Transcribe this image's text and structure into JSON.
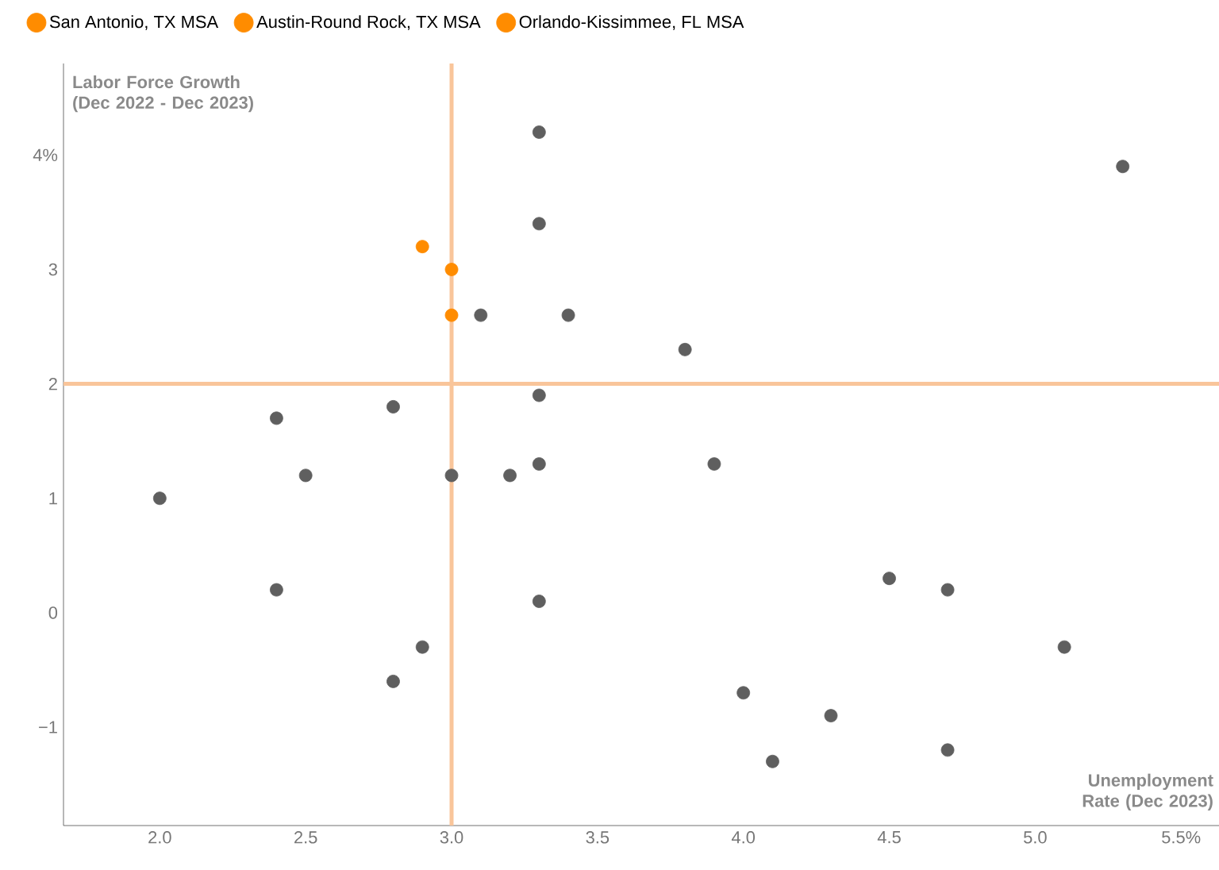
{
  "chart_data": {
    "type": "scatter",
    "xlabel": "Unemployment Rate (Dec 2023)",
    "ylabel": "Labor Force Growth (Dec 2022 - Dec 2023)",
    "xlim": [
      1.67,
      5.63
    ],
    "ylim": [
      -1.86,
      4.8
    ],
    "xticks": [
      {
        "value": 2.0,
        "label": "2.0"
      },
      {
        "value": 2.5,
        "label": "2.5"
      },
      {
        "value": 3.0,
        "label": "3.0"
      },
      {
        "value": 3.5,
        "label": "3.5"
      },
      {
        "value": 4.0,
        "label": "4.0"
      },
      {
        "value": 4.5,
        "label": "4.5"
      },
      {
        "value": 5.0,
        "label": "5.0"
      },
      {
        "value": 5.5,
        "label": "5.5%"
      }
    ],
    "yticks": [
      {
        "value": -1,
        "label": "−1"
      },
      0,
      1,
      2,
      3,
      {
        "value": 4,
        "label": "4%"
      }
    ],
    "legend": "top left",
    "ref_lines": [
      {
        "axis": "x",
        "value": 3.0,
        "color": "#f9c59a"
      },
      {
        "axis": "y",
        "value": 2.0,
        "color": "#f9c59a"
      }
    ],
    "series": [
      {
        "name": "San Antonio, TX MSA",
        "color": "#ff8c00",
        "x": [
          2.9
        ],
        "values": [
          3.2
        ]
      },
      {
        "name": "Austin-Round Rock, TX MSA",
        "color": "#ff8c00",
        "x": [
          3.0
        ],
        "values": [
          3.0
        ]
      },
      {
        "name": "Orlando-Kissimmee, FL MSA",
        "color": "#ff8c00",
        "x": [
          3.0
        ],
        "values": [
          2.6
        ]
      },
      {
        "color": "#5f5f5f",
        "x": [
          3.3,
          5.3,
          3.3,
          3.1,
          3.4,
          3.8,
          3.3,
          2.4,
          2.8,
          2.5,
          3.0,
          3.2,
          3.3,
          3.9,
          2.0,
          2.4,
          3.3,
          4.5,
          4.7,
          2.9,
          5.1,
          2.8,
          4.0,
          4.3,
          4.1,
          4.7
        ],
        "values": [
          4.2,
          3.9,
          3.4,
          2.6,
          2.6,
          2.3,
          1.9,
          1.7,
          1.8,
          1.2,
          1.2,
          1.2,
          1.3,
          1.3,
          1.0,
          0.2,
          0.1,
          0.3,
          0.2,
          -0.3,
          -0.3,
          -0.6,
          -0.7,
          -0.9,
          -1.3,
          -1.2
        ]
      }
    ]
  }
}
